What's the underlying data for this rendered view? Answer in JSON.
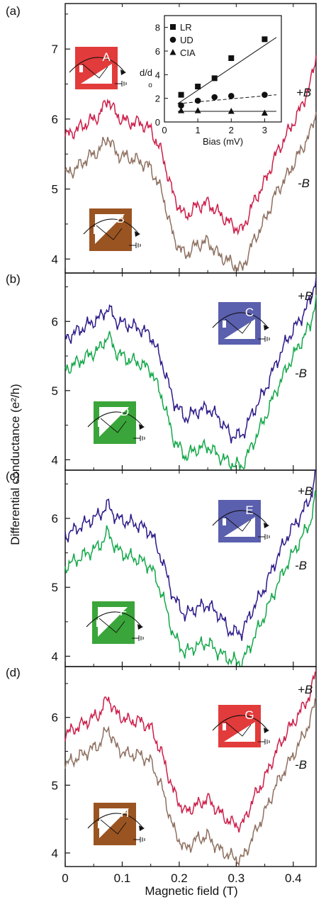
{
  "figure": {
    "ylabel": "Differential conductance (e²/h)",
    "xlabel": "Magnetic field (T)",
    "x_ticks": [
      "0",
      "0.1",
      "0.2",
      "0.3",
      "0.4"
    ],
    "colors": {
      "red": "#cc1f4a",
      "brown": "#8e7060",
      "navy": "#2e1a8a",
      "green": "#14a84a"
    },
    "icon_colors": {
      "red": "#e23b3b",
      "brown": "#9a5422",
      "blue": "#5a5fae",
      "green": "#3aa53a"
    }
  },
  "panels": [
    {
      "tag": "(a)",
      "y_ticks": [
        "4",
        "5",
        "6",
        "7"
      ],
      "top_label": "+B",
      "bottom_label": "-B",
      "icon_top": "A",
      "icon_bottom": "B"
    },
    {
      "tag": "(b)",
      "y_ticks": [
        "4",
        "5",
        "6"
      ],
      "top_label": "+B",
      "bottom_label": "-B",
      "icon_top": "C",
      "icon_bottom": "D"
    },
    {
      "tag": "(c)",
      "y_ticks": [
        "4",
        "5",
        "6"
      ],
      "top_label": "+B",
      "bottom_label": "-B",
      "icon_top": "E",
      "icon_bottom": "F"
    },
    {
      "tag": "(d)",
      "y_ticks": [
        "4",
        "5",
        "6"
      ],
      "top_label": "+B",
      "bottom_label": "-B",
      "icon_top": "G",
      "icon_bottom": "H"
    }
  ],
  "inset": {
    "xlabel": "Bias (mV)",
    "ylabel_main": "d/d",
    "ylabel_sub": "o",
    "x_ticks": [
      "0",
      "1",
      "2",
      "3"
    ],
    "y_ticks": [
      "0",
      "2",
      "4",
      "6",
      "8"
    ],
    "legend": [
      "LR",
      "UD",
      "CIA"
    ]
  },
  "chart_data": [
    {
      "type": "line",
      "panel": "(a)",
      "xlim": [
        0,
        0.44
      ],
      "ylim": [
        3.8,
        7.65
      ],
      "xlabel": "Magnetic field (T)",
      "ylabel": "Differential conductance (e²/h)",
      "x": [
        0,
        0.02,
        0.04,
        0.06,
        0.075,
        0.09,
        0.11,
        0.13,
        0.15,
        0.17,
        0.19,
        0.21,
        0.23,
        0.25,
        0.27,
        0.29,
        0.31,
        0.33,
        0.35,
        0.37,
        0.39,
        0.41,
        0.43,
        0.44
      ],
      "series": [
        {
          "name": "+B",
          "color": "red",
          "values": [
            5.75,
            5.85,
            5.95,
            6.05,
            6.3,
            6.05,
            5.95,
            5.95,
            5.85,
            5.5,
            4.9,
            4.6,
            4.75,
            4.8,
            4.65,
            4.5,
            4.4,
            4.8,
            5.1,
            5.5,
            5.8,
            6.1,
            6.5,
            6.9
          ]
        },
        {
          "name": "-B",
          "color": "brown",
          "values": [
            5.2,
            5.3,
            5.45,
            5.55,
            5.75,
            5.5,
            5.45,
            5.4,
            5.3,
            4.95,
            4.3,
            4.05,
            4.2,
            4.25,
            4.05,
            3.95,
            3.85,
            4.25,
            4.55,
            4.95,
            5.2,
            5.5,
            5.8,
            6.1
          ]
        }
      ]
    },
    {
      "type": "line",
      "panel": "(b)",
      "xlim": [
        0,
        0.44
      ],
      "ylim": [
        3.85,
        6.7
      ],
      "xlabel": "Magnetic field (T)",
      "ylabel": "Differential conductance (e²/h)",
      "x": [
        0,
        0.02,
        0.04,
        0.06,
        0.075,
        0.09,
        0.11,
        0.13,
        0.15,
        0.17,
        0.19,
        0.21,
        0.23,
        0.25,
        0.27,
        0.29,
        0.31,
        0.33,
        0.35,
        0.37,
        0.39,
        0.41,
        0.43,
        0.44
      ],
      "series": [
        {
          "name": "+B",
          "color": "navy",
          "values": [
            5.75,
            5.85,
            5.95,
            6.05,
            6.2,
            6.0,
            5.95,
            5.9,
            5.8,
            5.4,
            4.85,
            4.6,
            4.7,
            4.75,
            4.6,
            4.35,
            4.35,
            4.7,
            5.0,
            5.4,
            5.75,
            6.0,
            6.3,
            6.65
          ]
        },
        {
          "name": "-B",
          "color": "green",
          "values": [
            5.3,
            5.4,
            5.5,
            5.6,
            5.8,
            5.55,
            5.45,
            5.4,
            5.3,
            4.9,
            4.3,
            4.05,
            4.15,
            4.2,
            4.05,
            3.95,
            3.9,
            4.25,
            4.6,
            5.0,
            5.35,
            5.65,
            5.95,
            6.35
          ]
        }
      ]
    },
    {
      "type": "line",
      "panel": "(c)",
      "xlim": [
        0,
        0.44
      ],
      "ylim": [
        3.85,
        6.7
      ],
      "xlabel": "Magnetic field (T)",
      "ylabel": "Differential conductance (e²/h)",
      "x": [
        0,
        0.02,
        0.04,
        0.06,
        0.075,
        0.09,
        0.11,
        0.13,
        0.15,
        0.17,
        0.19,
        0.21,
        0.23,
        0.25,
        0.27,
        0.29,
        0.31,
        0.33,
        0.35,
        0.37,
        0.39,
        0.41,
        0.43,
        0.44
      ],
      "series": [
        {
          "name": "+B",
          "color": "navy",
          "values": [
            5.75,
            5.85,
            5.95,
            6.05,
            6.2,
            6.0,
            5.95,
            5.9,
            5.8,
            5.4,
            4.85,
            4.6,
            4.7,
            4.75,
            4.6,
            4.35,
            4.35,
            4.7,
            5.0,
            5.4,
            5.75,
            6.0,
            6.3,
            6.65
          ]
        },
        {
          "name": "-B",
          "color": "green",
          "values": [
            5.3,
            5.4,
            5.5,
            5.6,
            5.8,
            5.55,
            5.45,
            5.4,
            5.3,
            4.9,
            4.3,
            4.05,
            4.15,
            4.2,
            4.05,
            3.95,
            3.9,
            4.25,
            4.6,
            5.0,
            5.35,
            5.65,
            5.95,
            6.35
          ]
        }
      ]
    },
    {
      "type": "line",
      "panel": "(d)",
      "xlim": [
        0,
        0.44
      ],
      "ylim": [
        3.8,
        6.75
      ],
      "xlabel": "Magnetic field (T)",
      "ylabel": "Differential conductance (e²/h)",
      "x": [
        0,
        0.02,
        0.04,
        0.06,
        0.075,
        0.09,
        0.11,
        0.13,
        0.15,
        0.17,
        0.19,
        0.21,
        0.23,
        0.25,
        0.27,
        0.29,
        0.31,
        0.33,
        0.35,
        0.37,
        0.39,
        0.41,
        0.43,
        0.44
      ],
      "series": [
        {
          "name": "+B",
          "color": "red",
          "values": [
            5.75,
            5.85,
            5.95,
            6.05,
            6.3,
            6.05,
            5.95,
            5.95,
            5.85,
            5.45,
            4.9,
            4.6,
            4.7,
            4.8,
            4.6,
            4.45,
            4.4,
            4.8,
            5.1,
            5.5,
            5.8,
            6.05,
            6.35,
            6.7
          ]
        },
        {
          "name": "-B",
          "color": "brown",
          "values": [
            5.3,
            5.4,
            5.5,
            5.6,
            5.85,
            5.55,
            5.45,
            5.45,
            5.35,
            4.95,
            4.35,
            4.05,
            4.2,
            4.25,
            4.05,
            3.95,
            3.9,
            4.25,
            4.6,
            5.0,
            5.3,
            5.6,
            5.95,
            6.3
          ]
        }
      ]
    },
    {
      "type": "scatter",
      "panel": "(a) inset",
      "xlabel": "Bias (mV)",
      "ylabel": "d/do",
      "xlim": [
        0,
        3.5
      ],
      "ylim": [
        0,
        9
      ],
      "series": [
        {
          "name": "LR",
          "marker": "square",
          "x": [
            0.5,
            1,
            1.5,
            2,
            3
          ],
          "values": [
            2.3,
            3.0,
            3.7,
            5.4,
            7.0
          ],
          "fit": [
            1.55,
            7.15
          ]
        },
        {
          "name": "UD",
          "marker": "circle",
          "x": [
            0.5,
            1,
            1.5,
            2,
            3
          ],
          "values": [
            1.4,
            1.8,
            2.1,
            2.2,
            2.3
          ],
          "fit": [
            1.55,
            2.3
          ]
        },
        {
          "name": "CIA",
          "marker": "triangle",
          "x": [
            0.5,
            1,
            2,
            3
          ],
          "values": [
            0.95,
            0.95,
            0.9,
            0.75
          ],
          "fit": [
            0.9,
            0.9
          ]
        }
      ]
    }
  ]
}
